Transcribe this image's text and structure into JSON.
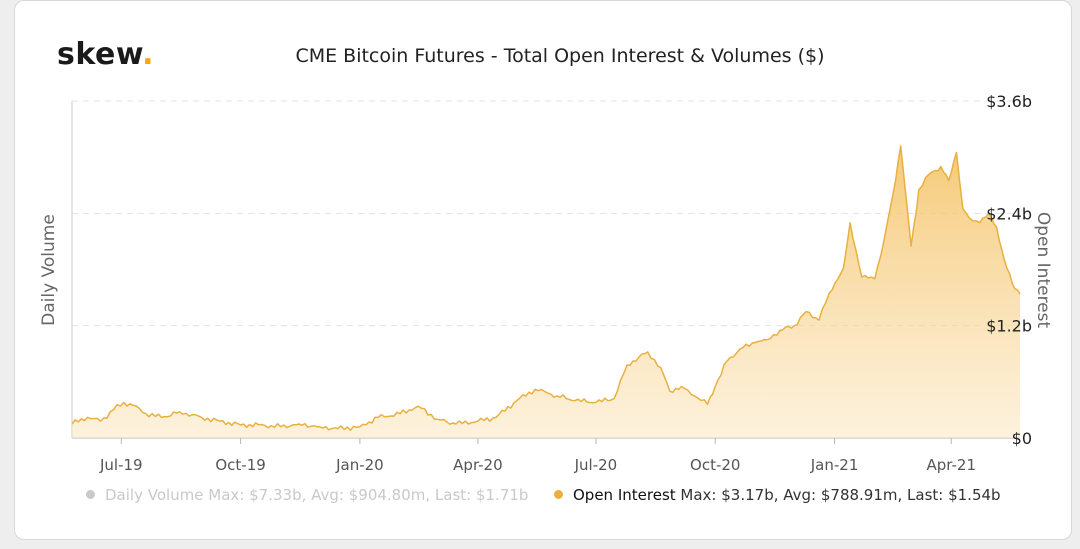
{
  "brand": {
    "name": "skew",
    "dot": ".",
    "accent": "#f2a900"
  },
  "chart_data": {
    "type": "area",
    "title": "CME Bitcoin Futures - Total Open Interest & Volumes ($)",
    "ylabel_left": "Daily Volume",
    "ylabel_right": "Open Interest",
    "right_axis": {
      "ticks": [
        "$0",
        "$1.2b",
        "$2.4b",
        "$3.6b"
      ],
      "values": [
        0,
        1.2,
        2.4,
        3.6
      ],
      "unit": "billion USD"
    },
    "x_ticks": [
      "Jul-19",
      "Oct-19",
      "Jan-20",
      "Apr-20",
      "Jul-20",
      "Oct-20",
      "Jan-21",
      "Apr-21"
    ],
    "x_tick_dates": [
      "2019-07-01",
      "2019-10-01",
      "2020-01-01",
      "2020-04-01",
      "2020-07-01",
      "2020-10-01",
      "2021-01-01",
      "2021-04-01"
    ],
    "x_range": [
      "2019-05-24",
      "2021-05-24"
    ],
    "ylim": [
      0,
      3.6
    ],
    "grid": true,
    "series": [
      {
        "name": "Open Interest",
        "color": "#e8b040",
        "visible": true,
        "x": [
          "2019-05-24",
          "2019-06-05",
          "2019-06-15",
          "2019-06-25",
          "2019-07-03",
          "2019-07-10",
          "2019-07-20",
          "2019-08-01",
          "2019-08-15",
          "2019-09-01",
          "2019-09-15",
          "2019-10-01",
          "2019-10-15",
          "2019-11-01",
          "2019-11-15",
          "2019-12-01",
          "2019-12-15",
          "2020-01-01",
          "2020-01-15",
          "2020-02-01",
          "2020-02-15",
          "2020-03-01",
          "2020-03-15",
          "2020-04-01",
          "2020-04-15",
          "2020-05-01",
          "2020-05-15",
          "2020-05-25",
          "2020-06-01",
          "2020-06-15",
          "2020-07-01",
          "2020-07-15",
          "2020-07-25",
          "2020-08-10",
          "2020-08-20",
          "2020-08-27",
          "2020-09-05",
          "2020-09-15",
          "2020-09-25",
          "2020-10-01",
          "2020-10-10",
          "2020-10-20",
          "2020-11-01",
          "2020-11-10",
          "2020-11-20",
          "2020-12-01",
          "2020-12-10",
          "2020-12-20",
          "2020-12-28",
          "2021-01-08",
          "2021-01-13",
          "2021-01-22",
          "2021-02-01",
          "2021-02-08",
          "2021-02-15",
          "2021-02-21",
          "2021-03-01",
          "2021-03-07",
          "2021-03-15",
          "2021-03-24",
          "2021-03-30",
          "2021-04-05",
          "2021-04-10",
          "2021-04-15",
          "2021-04-23",
          "2021-04-30",
          "2021-05-06",
          "2021-05-12",
          "2021-05-18",
          "2021-05-24"
        ],
        "values": [
          0.15,
          0.22,
          0.18,
          0.3,
          0.38,
          0.35,
          0.26,
          0.22,
          0.28,
          0.22,
          0.18,
          0.14,
          0.14,
          0.12,
          0.15,
          0.12,
          0.1,
          0.12,
          0.22,
          0.26,
          0.34,
          0.2,
          0.15,
          0.18,
          0.22,
          0.4,
          0.52,
          0.48,
          0.45,
          0.4,
          0.38,
          0.42,
          0.78,
          0.92,
          0.75,
          0.5,
          0.55,
          0.45,
          0.36,
          0.55,
          0.82,
          0.95,
          1.02,
          1.05,
          1.15,
          1.2,
          1.35,
          1.26,
          1.55,
          1.82,
          2.3,
          1.72,
          1.7,
          2.1,
          2.6,
          3.12,
          2.05,
          2.65,
          2.82,
          2.9,
          2.75,
          3.05,
          2.45,
          2.35,
          2.3,
          2.4,
          2.25,
          1.9,
          1.65,
          1.54
        ]
      }
    ],
    "legend": [
      {
        "name": "Daily Volume",
        "stats": "Max: $7.33b, Avg: $904.80m, Last: $1.71b",
        "visible": false,
        "color": "#c9c9c9"
      },
      {
        "name": "Open Interest",
        "stats": "Max: $3.17b, Avg: $788.91m, Last: $1.54b",
        "visible": true,
        "color": "#e8b040"
      }
    ],
    "legend_position": "bottom"
  }
}
